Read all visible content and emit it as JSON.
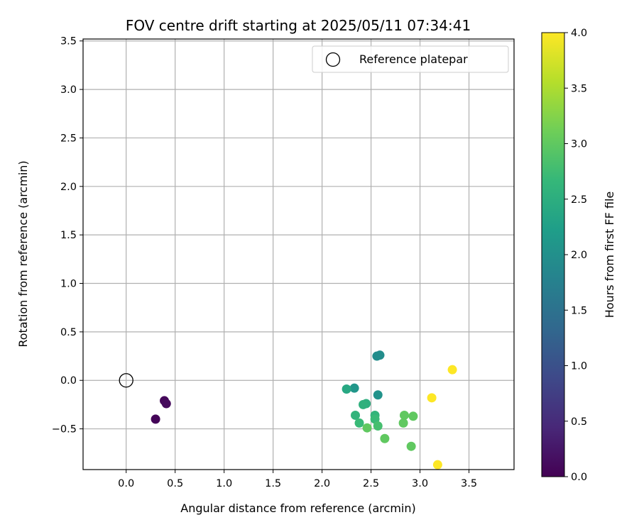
{
  "chart_data": {
    "type": "scatter",
    "title": "FOV centre drift starting at 2025/05/11 07:34:41",
    "xlabel": "Angular distance from reference (arcmin)",
    "ylabel": "Rotation from reference (arcmin)",
    "xlim": [
      -0.44,
      3.96
    ],
    "ylim": [
      -0.92,
      3.52
    ],
    "xticks": [
      0.0,
      0.5,
      1.0,
      1.5,
      2.0,
      2.5,
      3.0,
      3.5
    ],
    "xtick_labels": [
      "0.0",
      "0.5",
      "1.0",
      "1.5",
      "2.0",
      "2.5",
      "3.0",
      "3.5"
    ],
    "yticks": [
      -0.5,
      0.0,
      0.5,
      1.0,
      1.5,
      2.0,
      2.5,
      3.0,
      3.5
    ],
    "ytick_labels": [
      "−0.5",
      "0.0",
      "0.5",
      "1.0",
      "1.5",
      "2.0",
      "2.5",
      "3.0",
      "3.5"
    ],
    "grid": true,
    "legend": {
      "placement": "top-right",
      "label": "Reference platepar",
      "marker": "open-circle"
    },
    "reference_point": {
      "x": 0.0,
      "y": 0.0
    },
    "colorbar": {
      "label": "Hours from first FF file",
      "range": [
        0.0,
        4.0
      ],
      "ticks": [
        0.0,
        0.5,
        1.0,
        1.5,
        2.0,
        2.5,
        3.0,
        3.5,
        4.0
      ],
      "tick_labels": [
        "0.0",
        "0.5",
        "1.0",
        "1.5",
        "2.0",
        "2.5",
        "3.0",
        "3.5",
        "4.0"
      ],
      "colormap": "viridis",
      "colormap_stops": [
        "#440154",
        "#482878",
        "#3e4989",
        "#31688e",
        "#26828e",
        "#1f9e89",
        "#35b779",
        "#6ece58",
        "#b5de2b",
        "#fde725"
      ]
    },
    "points": [
      {
        "x": 0.3,
        "y": -0.4,
        "c": 0.05
      },
      {
        "x": 0.39,
        "y": -0.21,
        "c": 0.08
      },
      {
        "x": 0.41,
        "y": -0.24,
        "c": 0.1
      },
      {
        "x": 2.56,
        "y": 0.25,
        "c": 1.95
      },
      {
        "x": 2.59,
        "y": 0.26,
        "c": 1.95
      },
      {
        "x": 2.57,
        "y": -0.15,
        "c": 2.05
      },
      {
        "x": 2.33,
        "y": -0.08,
        "c": 2.1
      },
      {
        "x": 2.25,
        "y": -0.09,
        "c": 2.4
      },
      {
        "x": 2.45,
        "y": -0.24,
        "c": 2.5
      },
      {
        "x": 2.42,
        "y": -0.25,
        "c": 2.55
      },
      {
        "x": 2.34,
        "y": -0.36,
        "c": 2.6
      },
      {
        "x": 2.54,
        "y": -0.36,
        "c": 2.62
      },
      {
        "x": 2.38,
        "y": -0.44,
        "c": 2.7
      },
      {
        "x": 2.54,
        "y": -0.4,
        "c": 2.7
      },
      {
        "x": 2.57,
        "y": -0.47,
        "c": 2.8
      },
      {
        "x": 2.46,
        "y": -0.49,
        "c": 3.0
      },
      {
        "x": 2.64,
        "y": -0.6,
        "c": 3.0
      },
      {
        "x": 2.84,
        "y": -0.36,
        "c": 3.0
      },
      {
        "x": 2.93,
        "y": -0.37,
        "c": 3.0
      },
      {
        "x": 2.83,
        "y": -0.44,
        "c": 3.0
      },
      {
        "x": 2.91,
        "y": -0.68,
        "c": 3.0
      },
      {
        "x": 3.12,
        "y": -0.18,
        "c": 4.0
      },
      {
        "x": 3.33,
        "y": 0.11,
        "c": 4.0
      },
      {
        "x": 3.18,
        "y": -0.87,
        "c": 4.0
      }
    ]
  }
}
